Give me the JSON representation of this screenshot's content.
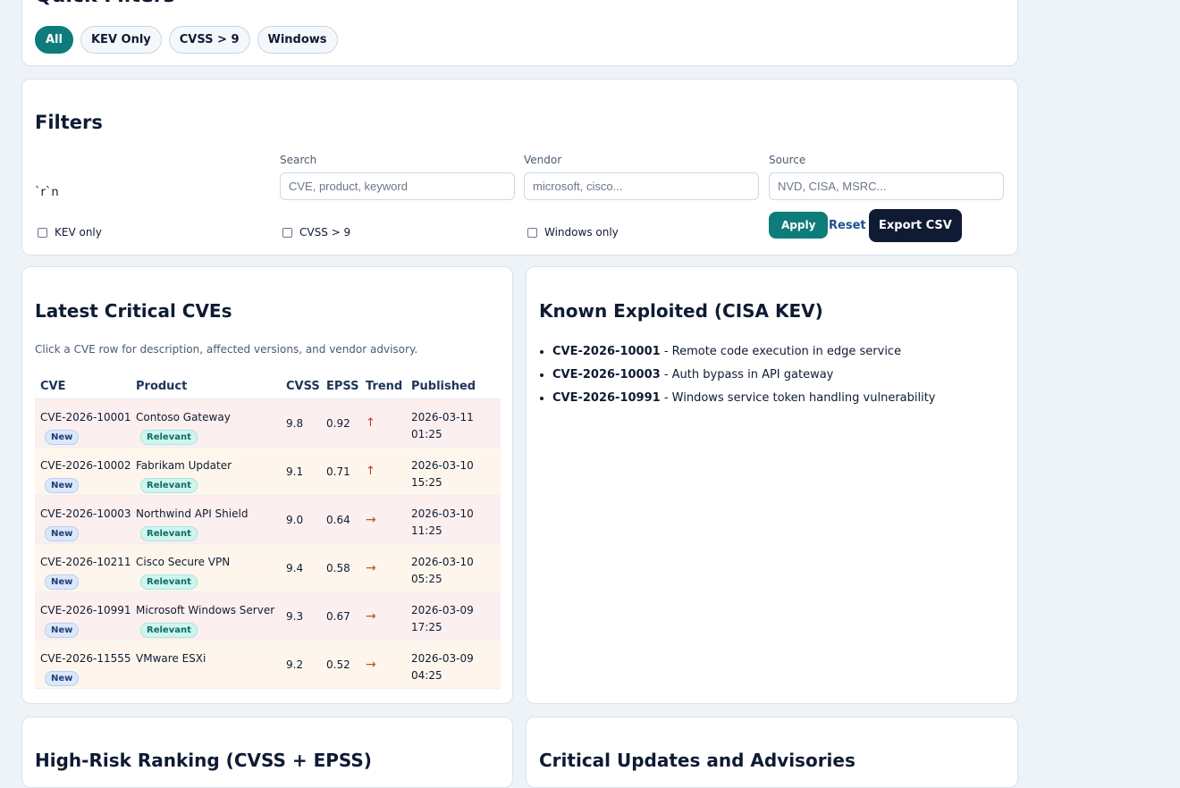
{
  "quick_filters": {
    "title": "Quick Filters",
    "pills": [
      "All",
      "KEV Only",
      "CVSS > 9",
      "Windows"
    ]
  },
  "filters": {
    "title": "Filters",
    "stray_text": "`r`n",
    "search": {
      "label": "Search",
      "placeholder": "CVE, product, keyword"
    },
    "vendor": {
      "label": "Vendor",
      "placeholder": "microsoft, cisco..."
    },
    "source": {
      "label": "Source",
      "placeholder": "NVD, CISA, MSRC..."
    },
    "checkboxes": [
      "KEV only",
      "CVSS > 9",
      "Windows only"
    ],
    "apply_label": "Apply",
    "reset_label": "Reset",
    "export_label": "Export CSV"
  },
  "latest": {
    "title": "Latest Critical CVEs",
    "hint": "Click a CVE row for description, affected versions, and vendor advisory.",
    "columns": [
      "CVE",
      "Product",
      "CVSS",
      "EPSS",
      "Trend",
      "Published"
    ],
    "rows": [
      {
        "cve": "CVE-2026-10001",
        "badge": "New",
        "product": "Contoso Gateway",
        "relevant": "Relevant",
        "cvss": "9.8",
        "epss": "0.92",
        "trend": "↑",
        "date": "2026-03-11",
        "time": "01:25"
      },
      {
        "cve": "CVE-2026-10002",
        "badge": "New",
        "product": "Fabrikam Updater",
        "relevant": "Relevant",
        "cvss": "9.1",
        "epss": "0.71",
        "trend": "↑",
        "date": "2026-03-10",
        "time": "15:25"
      },
      {
        "cve": "CVE-2026-10003",
        "badge": "New",
        "product": "Northwind API Shield",
        "relevant": "Relevant",
        "cvss": "9.0",
        "epss": "0.64",
        "trend": "→",
        "date": "2026-03-10",
        "time": "11:25"
      },
      {
        "cve": "CVE-2026-10211",
        "badge": "New",
        "product": "Cisco Secure VPN",
        "relevant": "Relevant",
        "cvss": "9.4",
        "epss": "0.58",
        "trend": "→",
        "date": "2026-03-10",
        "time": "05:25"
      },
      {
        "cve": "CVE-2026-10991",
        "badge": "New",
        "product": "Microsoft Windows Server",
        "relevant": "Relevant",
        "cvss": "9.3",
        "epss": "0.67",
        "trend": "→",
        "date": "2026-03-09",
        "time": "17:25"
      },
      {
        "cve": "CVE-2026-11555",
        "badge": "New",
        "product": "VMware ESXi",
        "relevant": "",
        "cvss": "9.2",
        "epss": "0.52",
        "trend": "→",
        "date": "2026-03-09",
        "time": "04:25"
      }
    ]
  },
  "kev": {
    "title": "Known Exploited (CISA KEV)",
    "items": [
      {
        "id": "CVE-2026-10001",
        "desc": " - Remote code execution in edge service"
      },
      {
        "id": "CVE-2026-10003",
        "desc": " - Auth bypass in API gateway"
      },
      {
        "id": "CVE-2026-10991",
        "desc": " - Windows service token handling vulnerability"
      }
    ]
  },
  "risk": {
    "title": "High-Risk Ranking (CVSS + EPSS)"
  },
  "advisories": {
    "title": "Critical Updates and Advisories"
  }
}
